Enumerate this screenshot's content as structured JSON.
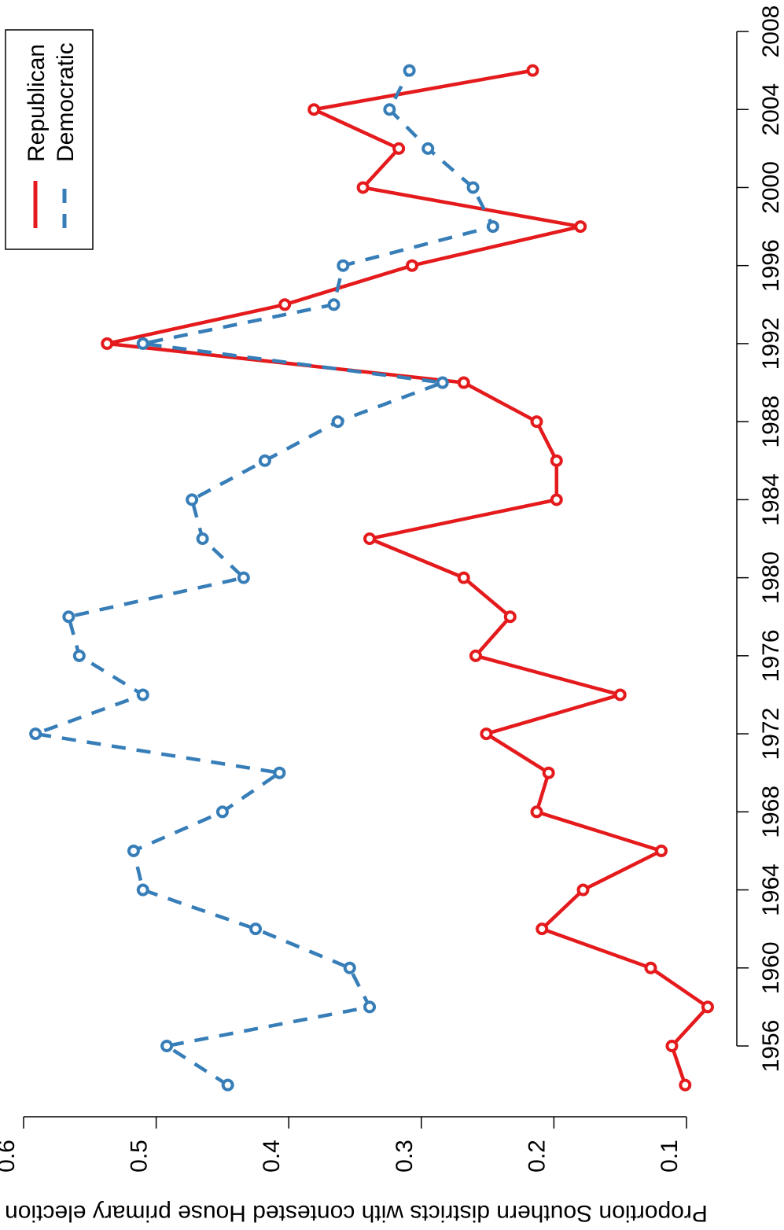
{
  "chart_data": {
    "type": "line",
    "orientation": "rotated",
    "ylabel": "Proportion Southern districts with contested House primary election",
    "xlabel": "",
    "x_ticks": [
      "1956",
      "1960",
      "1964",
      "1968",
      "1972",
      "1976",
      "1980",
      "1984",
      "1988",
      "1992",
      "1996",
      "2000",
      "2004",
      "2008"
    ],
    "y_ticks": [
      "0.1",
      "0.2",
      "0.3",
      "0.4",
      "0.5",
      "0.6"
    ],
    "xlim": [
      1954,
      2008
    ],
    "ylim": [
      0.1,
      0.6
    ],
    "grid": false,
    "legend_position": "top-right",
    "x": [
      1954,
      1956,
      1958,
      1960,
      1962,
      1964,
      1966,
      1968,
      1970,
      1972,
      1974,
      1976,
      1978,
      1980,
      1982,
      1984,
      1986,
      1988,
      1990,
      1992,
      1994,
      1996,
      1998,
      2000,
      2002,
      2004,
      2006
    ],
    "series": [
      {
        "name": "Republican",
        "color": "#e41a1c",
        "line_style": "solid",
        "values": [
          0.101,
          0.111,
          0.084,
          0.127,
          0.209,
          0.178,
          0.119,
          0.213,
          0.204,
          0.251,
          0.15,
          0.259,
          0.233,
          0.268,
          0.339,
          0.198,
          0.198,
          0.213,
          0.268,
          0.537,
          0.403,
          0.307,
          0.18,
          0.344,
          0.317,
          0.381,
          0.216
        ]
      },
      {
        "name": "Democratic",
        "color": "#377eb8",
        "line_style": "dashed",
        "values": [
          0.446,
          0.492,
          0.339,
          0.354,
          0.425,
          0.51,
          0.517,
          0.45,
          0.407,
          0.591,
          0.51,
          0.558,
          0.566,
          0.434,
          0.465,
          0.473,
          0.418,
          0.363,
          0.284,
          0.51,
          0.366,
          0.359,
          0.246,
          0.261,
          0.295,
          0.324,
          0.309
        ]
      }
    ]
  }
}
